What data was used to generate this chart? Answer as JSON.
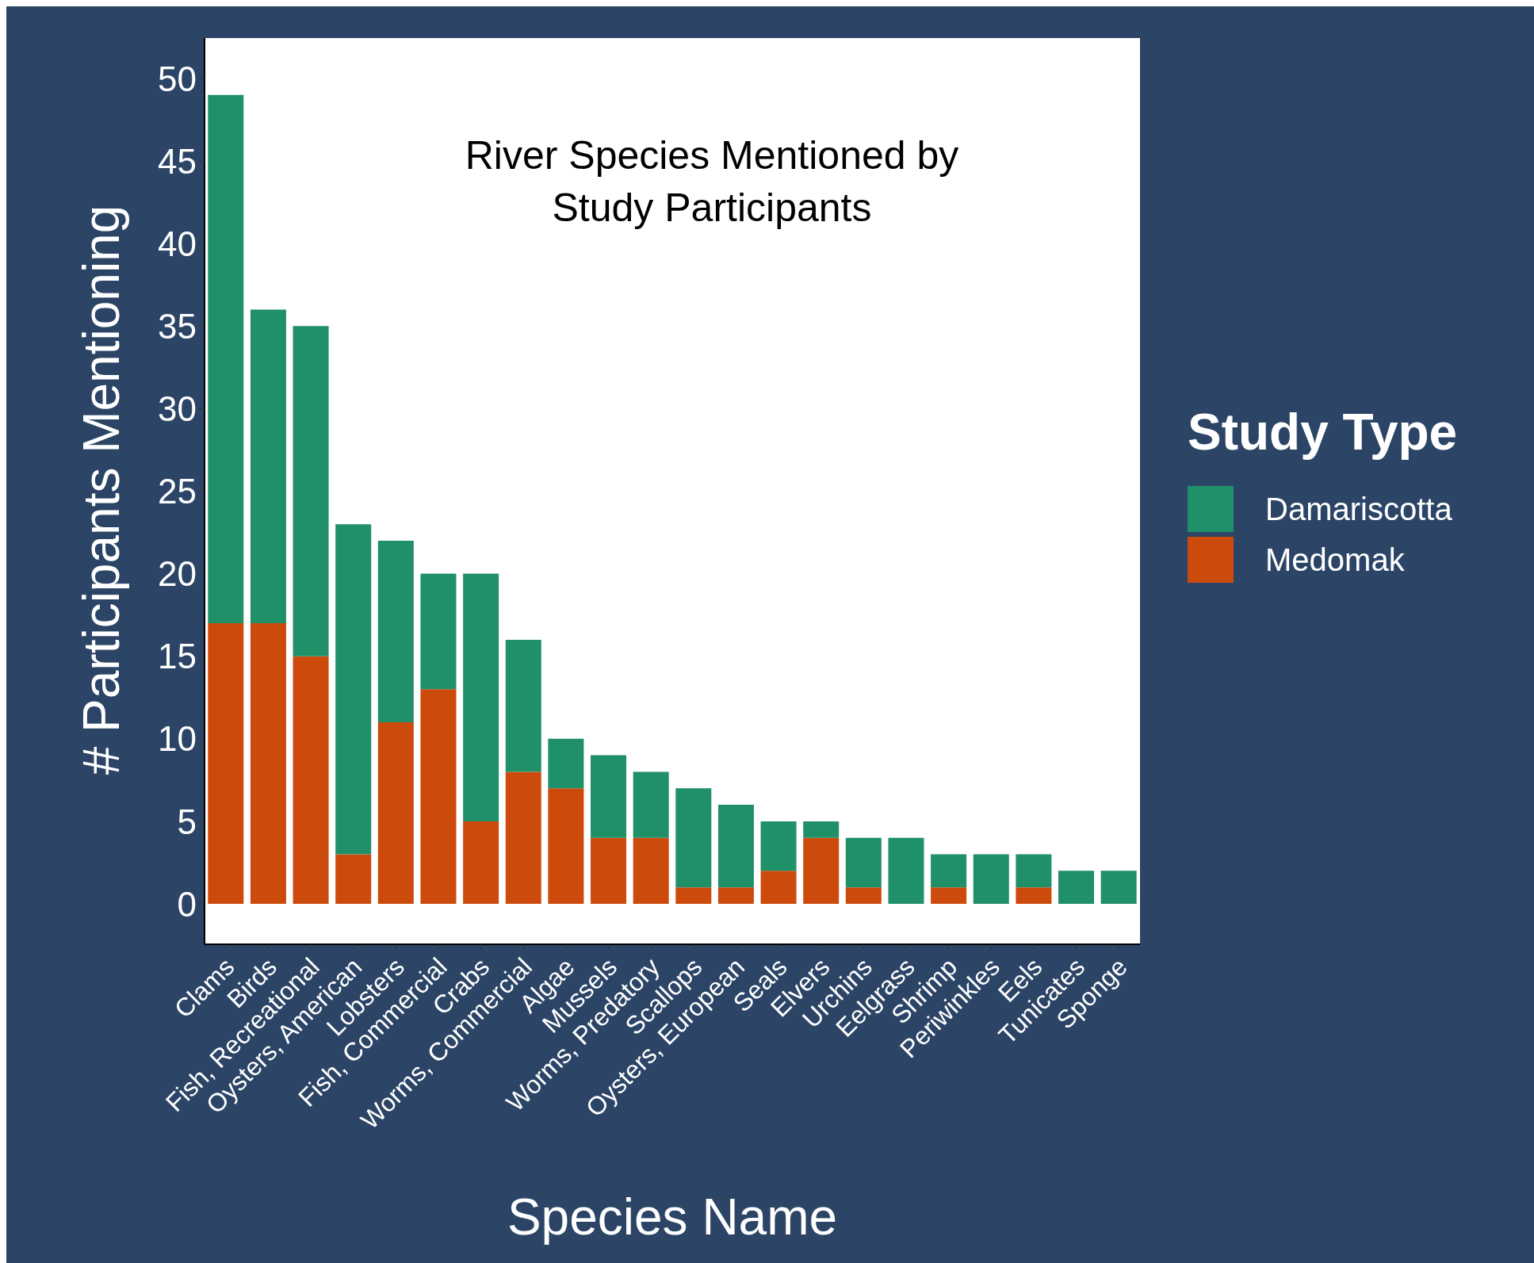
{
  "chart_data": {
    "type": "bar",
    "title": "River Species Mentioned by\nStudy Participants",
    "xlabel": "Species Name",
    "ylabel": "# Participants Mentioning",
    "legend_title": "Study Type",
    "legend": "right",
    "grid": false,
    "stacked": true,
    "categories": [
      "Clams",
      "Birds",
      "Fish, Recreational",
      "Oysters, American",
      "Lobsters",
      "Fish, Commercial",
      "Crabs",
      "Worms, Commercial",
      "Algae",
      "Mussels",
      "Worms, Predatory",
      "Scallops",
      "Oysters, European",
      "Seals",
      "Elvers",
      "Urchins",
      "Eelgrass",
      "Shrimp",
      "Periwinkles",
      "Eels",
      "Tunicates",
      "Sponge"
    ],
    "series": [
      {
        "name": "Medomak",
        "color": "#cc4a0c",
        "values": [
          17,
          17,
          15,
          3,
          11,
          13,
          5,
          8,
          7,
          4,
          4,
          1,
          1,
          2,
          4,
          1,
          0,
          1,
          0,
          1,
          0,
          0
        ]
      },
      {
        "name": "Damariscotta",
        "color": "#1f9068",
        "values": [
          32,
          19,
          20,
          20,
          11,
          7,
          15,
          8,
          3,
          5,
          4,
          6,
          5,
          3,
          1,
          3,
          4,
          2,
          3,
          2,
          2,
          2
        ]
      }
    ],
    "ylim": [
      -2.45,
      52.45
    ],
    "yticks": [
      0,
      5,
      10,
      15,
      20,
      25,
      30,
      35,
      40,
      45,
      50
    ]
  }
}
